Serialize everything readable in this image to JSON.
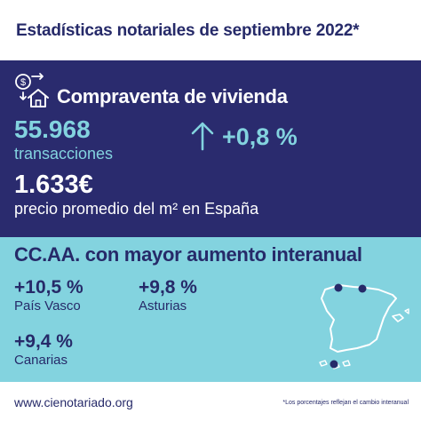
{
  "header": {
    "title": "Estadísticas notariales de septiembre  2022*"
  },
  "housing": {
    "icon": "money-house-icon",
    "title": "Compraventa de vivienda",
    "transactions_value": "55.968",
    "transactions_label": "transacciones",
    "trend_icon": "arrow-up-icon",
    "change": "+0,8 %",
    "price_value": "1.633€",
    "price_label": "precio promedio del m² en España"
  },
  "regions": {
    "title": "CC.AA. con mayor aumento interanual",
    "items": [
      {
        "value": "+10,5 %",
        "name": "País Vasco"
      },
      {
        "value": "+9,8 %",
        "name": "Asturias"
      },
      {
        "value": "+9,4 %",
        "name": "Canarias"
      }
    ],
    "map_icon": "spain-map-icon"
  },
  "footer": {
    "website": "www.cienotariado.org",
    "note": "*Los porcentajes reflejan el cambio interanual"
  },
  "colors": {
    "navy": "#2a2b6e",
    "light_blue": "#83d3df",
    "text_dark": "#262a69",
    "white": "#ffffff"
  }
}
